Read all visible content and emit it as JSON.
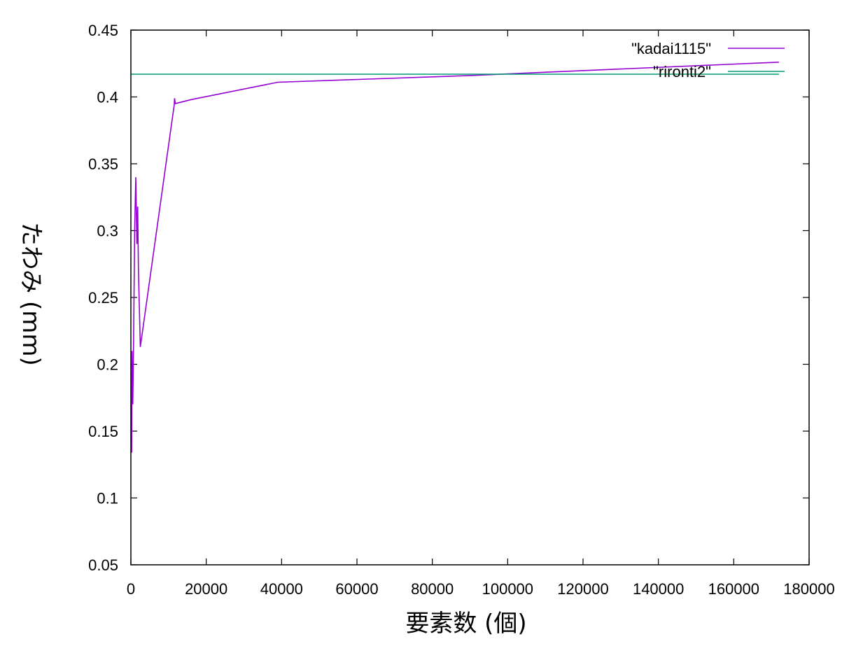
{
  "chart_data": {
    "type": "line",
    "xlabel": "要素数 (個)",
    "ylabel": "たわみ (mm)",
    "xlim": [
      0,
      180000
    ],
    "ylim": [
      0.05,
      0.45
    ],
    "x_ticks": [
      0,
      20000,
      40000,
      60000,
      80000,
      100000,
      120000,
      140000,
      160000,
      180000
    ],
    "y_ticks": [
      0.05,
      0.1,
      0.15,
      0.2,
      0.25,
      0.3,
      0.35,
      0.4,
      0.45
    ],
    "grid": false,
    "legend_position": "top-right",
    "series": [
      {
        "name": "\"kadai1115\"",
        "color": "#9400d3",
        "points": [
          [
            200,
            0.134
          ],
          [
            300,
            0.21
          ],
          [
            500,
            0.17
          ],
          [
            700,
            0.215
          ],
          [
            1000,
            0.3
          ],
          [
            1300,
            0.34
          ],
          [
            1600,
            0.29
          ],
          [
            1800,
            0.318
          ],
          [
            2000,
            0.27
          ],
          [
            2500,
            0.213
          ],
          [
            11500,
            0.394
          ],
          [
            11600,
            0.399
          ],
          [
            11800,
            0.395
          ],
          [
            16000,
            0.398
          ],
          [
            39000,
            0.411
          ],
          [
            90000,
            0.416
          ],
          [
            172000,
            0.426
          ]
        ]
      },
      {
        "name": "\"rironti2\"",
        "color": "#009e73",
        "points": [
          [
            0,
            0.417
          ],
          [
            172000,
            0.417
          ]
        ]
      }
    ]
  }
}
